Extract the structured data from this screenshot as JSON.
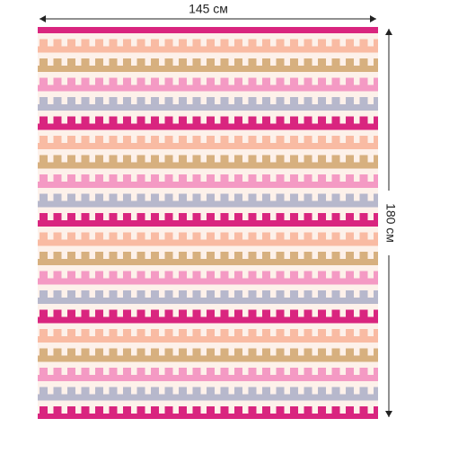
{
  "dimensions": {
    "width": "145 см",
    "height": "180 см"
  }
}
